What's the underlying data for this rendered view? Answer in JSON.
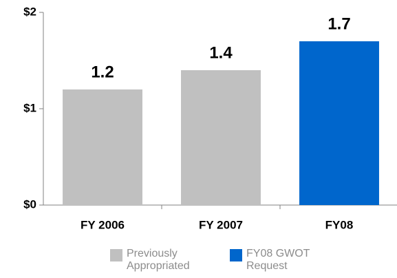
{
  "chart_data": {
    "type": "bar",
    "categories": [
      "FY 2006",
      "FY 2007",
      "FY08"
    ],
    "series": [
      {
        "name": "Previously Appropriated",
        "color": "#c0c0c0",
        "values": [
          1.2,
          1.4,
          null
        ]
      },
      {
        "name": "FY08 GWOT Request",
        "color": "#0066cc",
        "values": [
          null,
          null,
          1.7
        ]
      }
    ],
    "ylim": [
      0,
      2
    ],
    "yticks": [
      {
        "value": 0,
        "label": "$0"
      },
      {
        "value": 1,
        "label": "$1"
      },
      {
        "value": 2,
        "label": "$2"
      }
    ],
    "grid": false
  }
}
